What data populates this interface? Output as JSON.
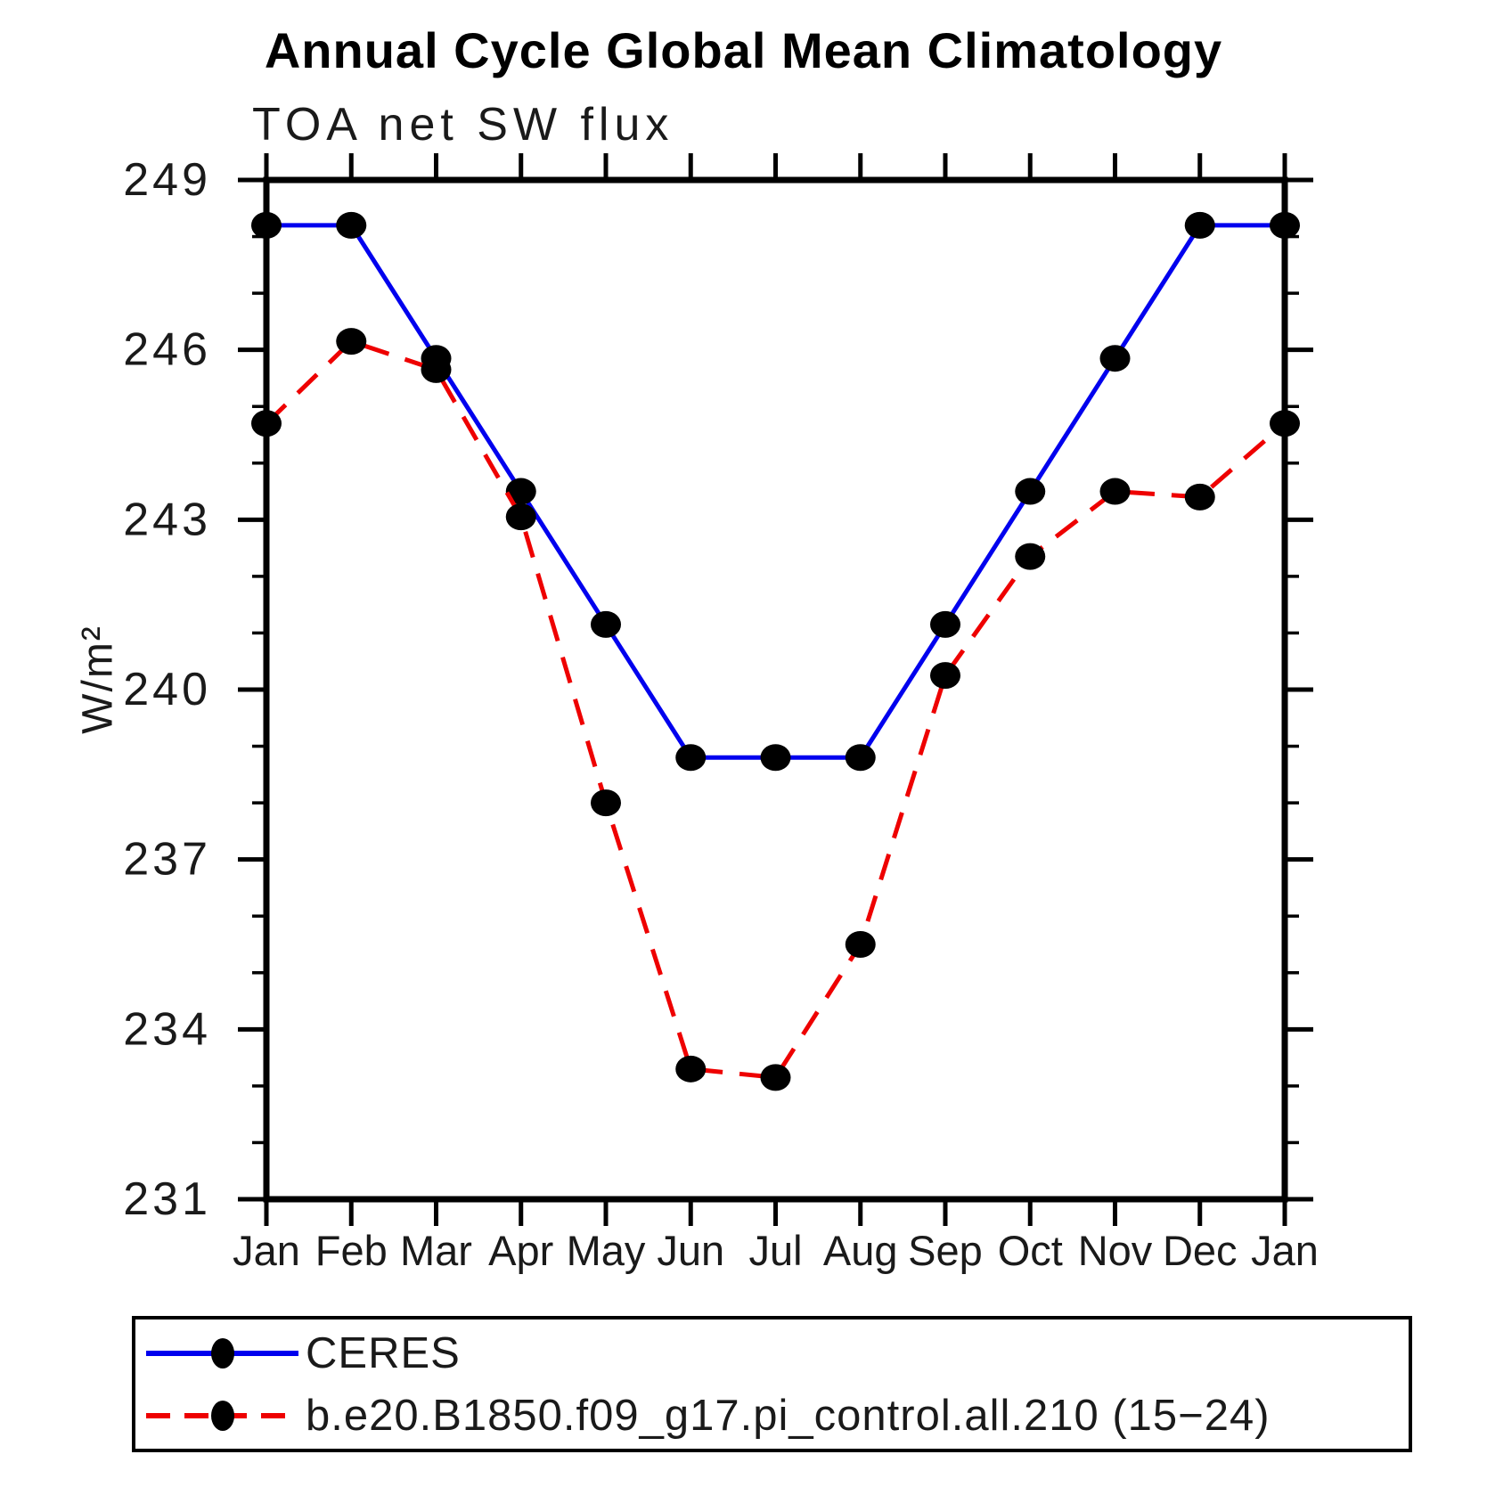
{
  "title": "Annual Cycle Global Mean Climatology",
  "subtitle": "TOA net SW flux",
  "ylabel": "W/m²",
  "chart_data": {
    "type": "line",
    "title": "Annual Cycle Global Mean Climatology",
    "subtitle": "TOA net SW flux",
    "ylabel": "W/m²",
    "categories": [
      "Jan",
      "Feb",
      "Mar",
      "Apr",
      "May",
      "Jun",
      "Jul",
      "Aug",
      "Sep",
      "Oct",
      "Nov",
      "Dec",
      "Jan"
    ],
    "series": [
      {
        "name": "CERES",
        "color": "#0000ee",
        "style": "solid",
        "values": [
          248.2,
          248.2,
          245.85,
          243.5,
          241.15,
          238.8,
          238.8,
          238.8,
          241.15,
          243.5,
          245.85,
          248.2,
          248.2
        ]
      },
      {
        "name": "b.e20.B1850.f09_g17.pi_control.all.210 (15−24)",
        "color": "#ee0000",
        "style": "dashed",
        "values": [
          244.7,
          246.15,
          245.65,
          243.05,
          238.0,
          233.3,
          233.15,
          235.5,
          240.25,
          242.35,
          243.5,
          243.4,
          244.7
        ]
      }
    ],
    "marker_color": "#000000",
    "ylim": [
      231,
      249
    ],
    "yticks_major": [
      249,
      246,
      243,
      240,
      237,
      234,
      231
    ],
    "ytick_minor_step": 1,
    "grid": false,
    "legend_position": "bottom-left-box"
  },
  "legend": {
    "entries": [
      {
        "label": "CERES"
      },
      {
        "label": "b.e20.B1850.f09_g17.pi_control.all.210 (15−24)"
      }
    ]
  }
}
